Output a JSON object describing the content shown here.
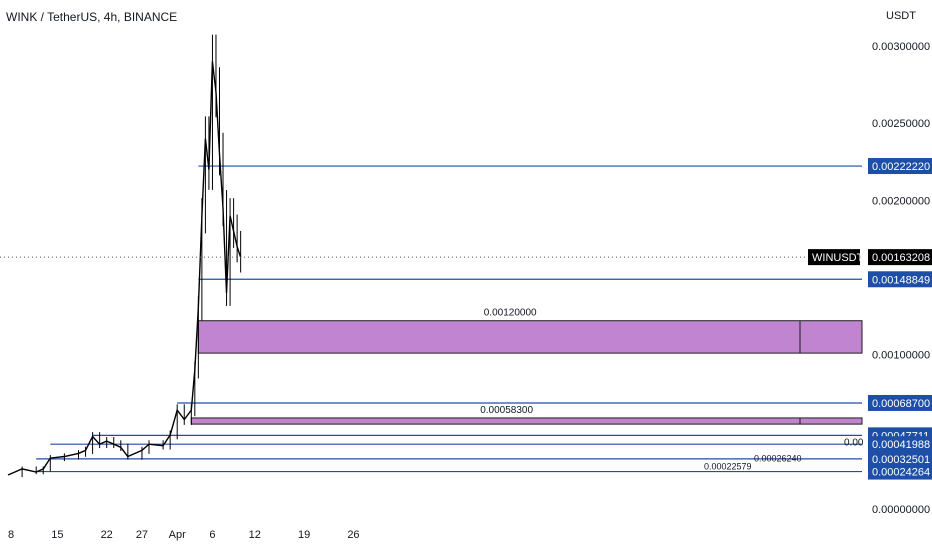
{
  "header": {
    "title": "WINK / TetherUS, 4h, BINANCE",
    "currency": "USDT"
  },
  "colors": {
    "background": "#ffffff",
    "candle": "#000000",
    "level_line": "#1e4fa6",
    "zone_fill": "#c084d0",
    "zone_border": "#1e1e1e",
    "label_bg": "#1e4fa6",
    "label_text": "#ffffff",
    "symbol_tag_bg": "#000000",
    "axis_text": "#131722"
  },
  "chart_data": {
    "type": "candlestick",
    "symbol": "WINUSDT",
    "interval": "4h",
    "exchange": "BINANCE",
    "x_ticks": [
      "8",
      "15",
      "22",
      "27",
      "Apr",
      "6",
      "12",
      "19",
      "26"
    ],
    "y_ticks": [
      "0.00300000",
      "0.00250000",
      "0.00200000",
      "0.00100000",
      "0.00000000"
    ],
    "ylim": [
      0,
      0.0031
    ],
    "price_path": [
      [
        "Mar 8",
        0.00022
      ],
      [
        "Mar 10",
        0.00026
      ],
      [
        "Mar 12",
        0.00024
      ],
      [
        "Mar 13",
        0.00026
      ],
      [
        "Mar 14",
        0.00033
      ],
      [
        "Mar 16",
        0.00034
      ],
      [
        "Mar 18",
        0.00036
      ],
      [
        "Mar 19",
        0.00038
      ],
      [
        "Mar 20",
        0.00047
      ],
      [
        "Mar 21",
        0.00042
      ],
      [
        "Mar 22",
        0.00044
      ],
      [
        "Mar 23",
        0.00042
      ],
      [
        "Mar 24",
        0.0004
      ],
      [
        "Mar 25",
        0.00034
      ],
      [
        "Mar 27",
        0.00038
      ],
      [
        "Mar 28",
        0.00042
      ],
      [
        "Mar 30",
        0.00041
      ],
      [
        "Mar 31",
        0.00048
      ],
      [
        "Apr 1",
        0.00064
      ],
      [
        "Apr 2",
        0.00058
      ],
      [
        "Apr 3",
        0.00064
      ],
      [
        "Apr 3.5",
        0.0009
      ],
      [
        "Apr 4",
        0.0013
      ],
      [
        "Apr 4.5",
        0.0019
      ],
      [
        "Apr 5",
        0.0024
      ],
      [
        "Apr 5.5",
        0.0022
      ],
      [
        "Apr 6",
        0.0029
      ],
      [
        "Apr 6.5",
        0.0027
      ],
      [
        "Apr 7",
        0.0023
      ],
      [
        "Apr 7.5",
        0.00195
      ],
      [
        "Apr 8",
        0.0014
      ],
      [
        "Apr 8.5",
        0.0019
      ],
      [
        "Apr 9",
        0.0018
      ],
      [
        "Apr 9.5",
        0.0017
      ],
      [
        "Apr 10",
        0.00163
      ]
    ],
    "last_price": {
      "symbol": "WINUSDT",
      "value": "0.00163208"
    },
    "price_labels": [
      "0.00222220",
      "0.00148849",
      "0.00068700",
      "0.00047711",
      "0.00041988",
      "0.00032501",
      "0.00024264"
    ],
    "horizontal_levels": [
      {
        "value": 0.0022222,
        "label": "0.00222220",
        "from": "Apr 4"
      },
      {
        "value": 0.00148849,
        "label": "0.00148849",
        "from": "Apr 4"
      },
      {
        "value": 0.000687,
        "label": "0.00068700",
        "from": "Apr 1"
      },
      {
        "value": 0.00047711,
        "label": "0.00047711",
        "from": "Mar 20"
      },
      {
        "value": 0.00041988,
        "label": "0.00041988",
        "from": "Mar 14"
      },
      {
        "value": 0.00032501,
        "label": "0.00032501",
        "from": "Mar 12"
      },
      {
        "value": 0.00024264,
        "label": "0.00024264",
        "from": "Mar 12"
      }
    ],
    "zones": [
      {
        "label": "0.00120000",
        "top": 0.00122,
        "bottom": 0.00101,
        "from": "Apr 4"
      },
      {
        "label": "0.00058300",
        "top": 0.00059,
        "bottom": 0.00055,
        "from": "Apr 3"
      }
    ],
    "annotations": [
      "0.00",
      "0.00026240",
      "0.00022579"
    ]
  }
}
